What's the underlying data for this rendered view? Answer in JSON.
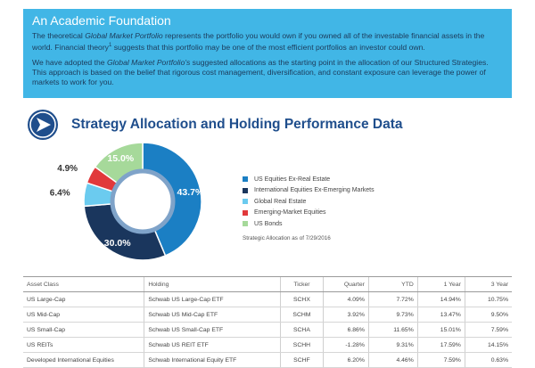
{
  "intro": {
    "title": "An Academic Foundation",
    "p1_a": "The theoretical ",
    "p1_em": "Global Market Portfolio",
    "p1_b": " represents the portfolio you would own if you owned all of the investable financial assets in the world. Financial theory",
    "p1_sup": "1",
    "p1_c": " suggests that this portfolio may be one of the most efficient portfolios an investor could own.",
    "p2_a": "We have adopted the ",
    "p2_em": "Global Market Portfolio's",
    "p2_b": " suggested allocations as the starting point in the allocation of our Structured Strategies. This approach is based on the belief that rigorous cost management, diversification, and constant exposure can leverage the power of markets to work for you."
  },
  "section": {
    "title": "Strategy Allocation and Holding Performance Data",
    "icon": "play-arrow-icon"
  },
  "chart_data": {
    "type": "pie",
    "title": "",
    "slices": [
      {
        "label": "US Equities Ex-Real Estate",
        "value": 43.7,
        "display": "43.7%",
        "color": "#1b7fc4"
      },
      {
        "label": "International Equities Ex-Emerging Markets",
        "value": 30.0,
        "display": "30.0%",
        "color": "#1a365d"
      },
      {
        "label": "Global Real Estate",
        "value": 6.4,
        "display": "6.4%",
        "color": "#6bcbef"
      },
      {
        "label": "Emerging-Market Equities",
        "value": 4.9,
        "display": "4.9%",
        "color": "#e1393b"
      },
      {
        "label": "US Bonds",
        "value": 15.0,
        "display": "15.0%",
        "color": "#a6d99a"
      }
    ],
    "legend_position": "right",
    "note": "Strategic Allocation as of 7/29/2016"
  },
  "table": {
    "headers": [
      "Asset Class",
      "Holding",
      "Ticker",
      "Quarter",
      "YTD",
      "1 Year",
      "3 Year"
    ],
    "rows": [
      [
        "US Large-Cap",
        "Schwab US Large-Cap ETF",
        "SCHX",
        "4.09%",
        "7.72%",
        "14.94%",
        "10.75%"
      ],
      [
        "US Mid-Cap",
        "Schwab US Mid-Cap ETF",
        "SCHM",
        "3.92%",
        "9.73%",
        "13.47%",
        "9.50%"
      ],
      [
        "US Small-Cap",
        "Schwab US Small-Cap ETF",
        "SCHA",
        "6.86%",
        "11.65%",
        "15.01%",
        "7.59%"
      ],
      [
        "US REITs",
        "Schwab US REIT ETF",
        "SCHH",
        "-1.28%",
        "9.31%",
        "17.59%",
        "14.15%"
      ],
      [
        "Developed International Equities",
        "Schwab International Equity ETF",
        "SCHF",
        "6.20%",
        "4.46%",
        "7.59%",
        "0.63%"
      ]
    ]
  }
}
